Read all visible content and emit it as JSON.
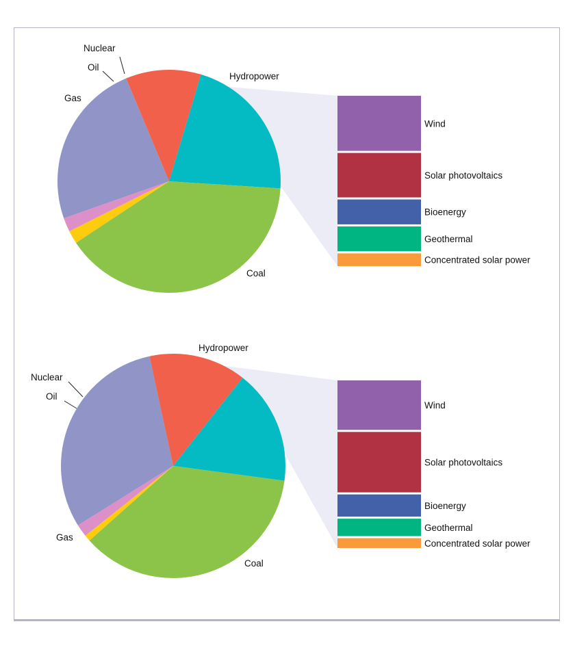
{
  "colors": {
    "background": "#ffffff",
    "frame": "#b4b4c8",
    "connector_fill": "#ececf7"
  },
  "chart_data": [
    {
      "type": "pie",
      "title": "",
      "slices": [
        {
          "label": "Hydropower",
          "value": 24.1,
          "color": "#9194c6"
        },
        {
          "label": "",
          "value": 10.9,
          "color": "#f0604a"
        },
        {
          "label": "Coal",
          "value": 21.4,
          "color": "#05bbc3"
        },
        {
          "label": "Gas",
          "value": 39.7,
          "color": "#8bc449"
        },
        {
          "label": "Oil",
          "value": 1.9,
          "color": "#fdcc0e"
        },
        {
          "label": "Nuclear",
          "value": 2.0,
          "color": "#dd90c8"
        }
      ],
      "breakdown": {
        "of_slice_index": 1,
        "items": [
          {
            "label": "Wind",
            "value": 33.2,
            "color": "#9162ab"
          },
          {
            "label": "Solar photovoltaics",
            "value": 26.8,
            "color": "#b03243"
          },
          {
            "label": "Bioenergy",
            "value": 15.0,
            "color": "#4261a9"
          },
          {
            "label": "Geothermal",
            "value": 15.0,
            "color": "#00b581"
          },
          {
            "label": "Concentrated solar power",
            "value": 7.7,
            "color": "#f99b3b"
          }
        ]
      }
    },
    {
      "type": "pie",
      "title": "",
      "slices": [
        {
          "label": "Hydropower",
          "value": 30.5,
          "color": "#9194c6"
        },
        {
          "label": "",
          "value": 14.0,
          "color": "#f0604a"
        },
        {
          "label": "Coal",
          "value": 16.5,
          "color": "#05bbc3"
        },
        {
          "label": "Gas",
          "value": 36.3,
          "color": "#8bc449"
        },
        {
          "label": "Oil",
          "value": 0.9,
          "color": "#fdcc0e"
        },
        {
          "label": "Nuclear",
          "value": 1.8,
          "color": "#dd90c8"
        }
      ],
      "breakdown": {
        "of_slice_index": 1,
        "items": [
          {
            "label": "Wind",
            "value": 31.2,
            "color": "#9162ab"
          },
          {
            "label": "Solar photovoltaics",
            "value": 38.1,
            "color": "#b03243"
          },
          {
            "label": "Bioenergy",
            "value": 14.0,
            "color": "#4261a9"
          },
          {
            "label": "Geothermal",
            "value": 11.0,
            "color": "#00b581"
          },
          {
            "label": "Concentrated solar power",
            "value": 6.2,
            "color": "#f99b3b"
          }
        ]
      }
    }
  ]
}
